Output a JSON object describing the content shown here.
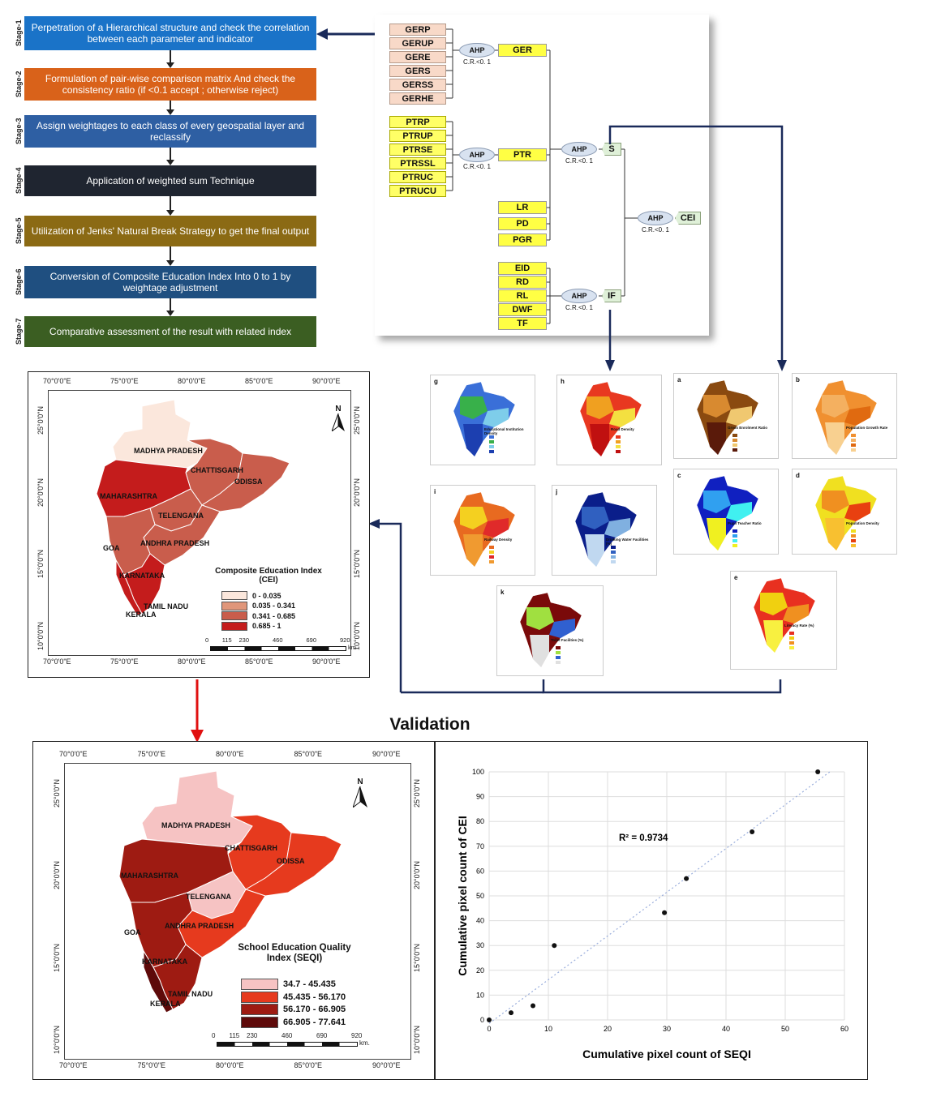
{
  "stages": [
    {
      "label": "Stage-1",
      "text": "Perpetration of a Hierarchical structure and check the correlation between each parameter and indicator",
      "color": "#1a73c8"
    },
    {
      "label": "Stage-2",
      "text": "Formulation of pair-wise comparison matrix And check the consistency ratio (if <0.1 accept ; otherwise reject)",
      "color": "#d9621a"
    },
    {
      "label": "Stage-3",
      "text": "Assign weightages to each class of every geospatial layer and reclassify",
      "color": "#2e5fa3"
    },
    {
      "label": "Stage-4",
      "text": "Application of weighted sum Technique",
      "color": "#1f2530"
    },
    {
      "label": "Stage-5",
      "text": "Utilization of Jenks' Natural Break Strategy to get the final output",
      "color": "#8b6a14"
    },
    {
      "label": "Stage-6",
      "text": "Conversion of  Composite Education Index Into 0 to 1 by weightage adjustment",
      "color": "#1f4f80"
    },
    {
      "label": "Stage-7",
      "text": "Comparative assessment of the result with related index",
      "color": "#3b5e22"
    }
  ],
  "hierarchy": {
    "ger_indicators": [
      "GERP",
      "GERUP",
      "GERE",
      "GERS",
      "GERSS",
      "GERHE"
    ],
    "ptr_indicators": [
      "PTRP",
      "PTRUP",
      "PTRSE",
      "PTRSSL",
      "PTRUC",
      "PTRUCU"
    ],
    "s_direct": [
      "LR",
      "PD",
      "PGR"
    ],
    "if_indicators": [
      "EID",
      "RD",
      "RL",
      "DWF",
      "TF"
    ],
    "ahp": "AHP",
    "cr": "C.R.<0. 1",
    "nodes": {
      "ger": "GER",
      "ptr": "PTR",
      "s": "S",
      "if": "IF",
      "cei": "CEI"
    }
  },
  "cei_map": {
    "lon_labels": [
      "70°0'0\"E",
      "75°0'0\"E",
      "80°0'0\"E",
      "85°0'0\"E",
      "90°0'0\"E"
    ],
    "lat_labels": [
      "25°0'0\"N",
      "20°0'0\"N",
      "15°0'0\"N",
      "10°0'0\"N"
    ],
    "states": [
      "MADHYA PRADESH",
      "CHATTISGARH",
      "ODISSA",
      "MAHARASHTRA",
      "TELENGANA",
      "ANDHRA PRADESH",
      "GOA",
      "KARNATAKA",
      "TAMIL NADU",
      "KERALA"
    ],
    "legend_title": "Composite Education Index (CEI)",
    "legend": [
      {
        "label": "0 - 0.035",
        "color": "#fbe7dc"
      },
      {
        "label": "0.035 - 0.341",
        "color": "#e0967a"
      },
      {
        "label": "0.341 - 0.685",
        "color": "#c95d4c"
      },
      {
        "label": "0.685 - 1",
        "color": "#c41c1c"
      }
    ],
    "scale": [
      "0",
      "115",
      "230",
      "460",
      "690",
      "920"
    ],
    "scale_unit": "km.",
    "north": "N"
  },
  "validation_title": "Validation",
  "seqi_map": {
    "lon_labels": [
      "70°0'0\"E",
      "75°0'0\"E",
      "80°0'0\"E",
      "85°0'0\"E",
      "90°0'0\"E"
    ],
    "lat_labels": [
      "25°0'0\"N",
      "20°0'0\"N",
      "15°0'0\"N",
      "10°0'0\"N"
    ],
    "states": [
      "MADHYA PRADESH",
      "CHATTISGARH",
      "ODISSA",
      "MAHARASHTRA",
      "TELENGANA",
      "ANDHRA PRADESH",
      "GOA",
      "KARNATAKA",
      "TAMIL NADU",
      "KERALA"
    ],
    "legend_title": "School Education Quality Index (SEQI)",
    "legend": [
      {
        "label": "34.7 - 45.435",
        "color": "#f6c3c3"
      },
      {
        "label": "45.435 - 56.170",
        "color": "#e63a1e"
      },
      {
        "label": "56.170 - 66.905",
        "color": "#9e1b12"
      },
      {
        "label": "66.905 - 77.641",
        "color": "#5e0a0a"
      }
    ],
    "scale": [
      "0",
      "115",
      "230",
      "460",
      "690",
      "920"
    ],
    "scale_unit": "km.",
    "north": "N"
  },
  "chart_data": {
    "type": "scatter",
    "x": [
      0,
      3.7,
      7.4,
      11,
      29.6,
      33.3,
      44.4,
      55.5
    ],
    "y": [
      0,
      2.9,
      5.7,
      30,
      43.2,
      57,
      75.8,
      100
    ],
    "xlabel": "Cumulative pixel count of SEQI",
    "ylabel": "Cumulative pixel count of CEI",
    "xlim": [
      0,
      60
    ],
    "ylim": [
      0,
      100
    ],
    "xticks": [
      "0",
      "10",
      "20",
      "30",
      "40",
      "50",
      "60"
    ],
    "yticks": [
      "0",
      "10",
      "20",
      "30",
      "40",
      "50",
      "60",
      "70",
      "80",
      "90",
      "100"
    ],
    "annotation": "R² = 0.9734",
    "trendline": true,
    "grid": true
  },
  "mini_maps": [
    {
      "letter": "g",
      "title": "Educational Institution Density"
    },
    {
      "letter": "h",
      "title": "Road Density"
    },
    {
      "letter": "i",
      "title": "Railway Density"
    },
    {
      "letter": "j",
      "title": "Drinking Water Facilities (%)"
    },
    {
      "letter": "k",
      "title": "Toilet Facilities (%)"
    },
    {
      "letter": "a",
      "title": "Gross Enrolment Ratio"
    },
    {
      "letter": "b",
      "title": "Population Growth Rate"
    },
    {
      "letter": "c",
      "title": "Pupil Teacher Ratio"
    },
    {
      "letter": "d",
      "title": "Population Density"
    },
    {
      "letter": "e",
      "title": "Literacy Rate (%)"
    }
  ]
}
